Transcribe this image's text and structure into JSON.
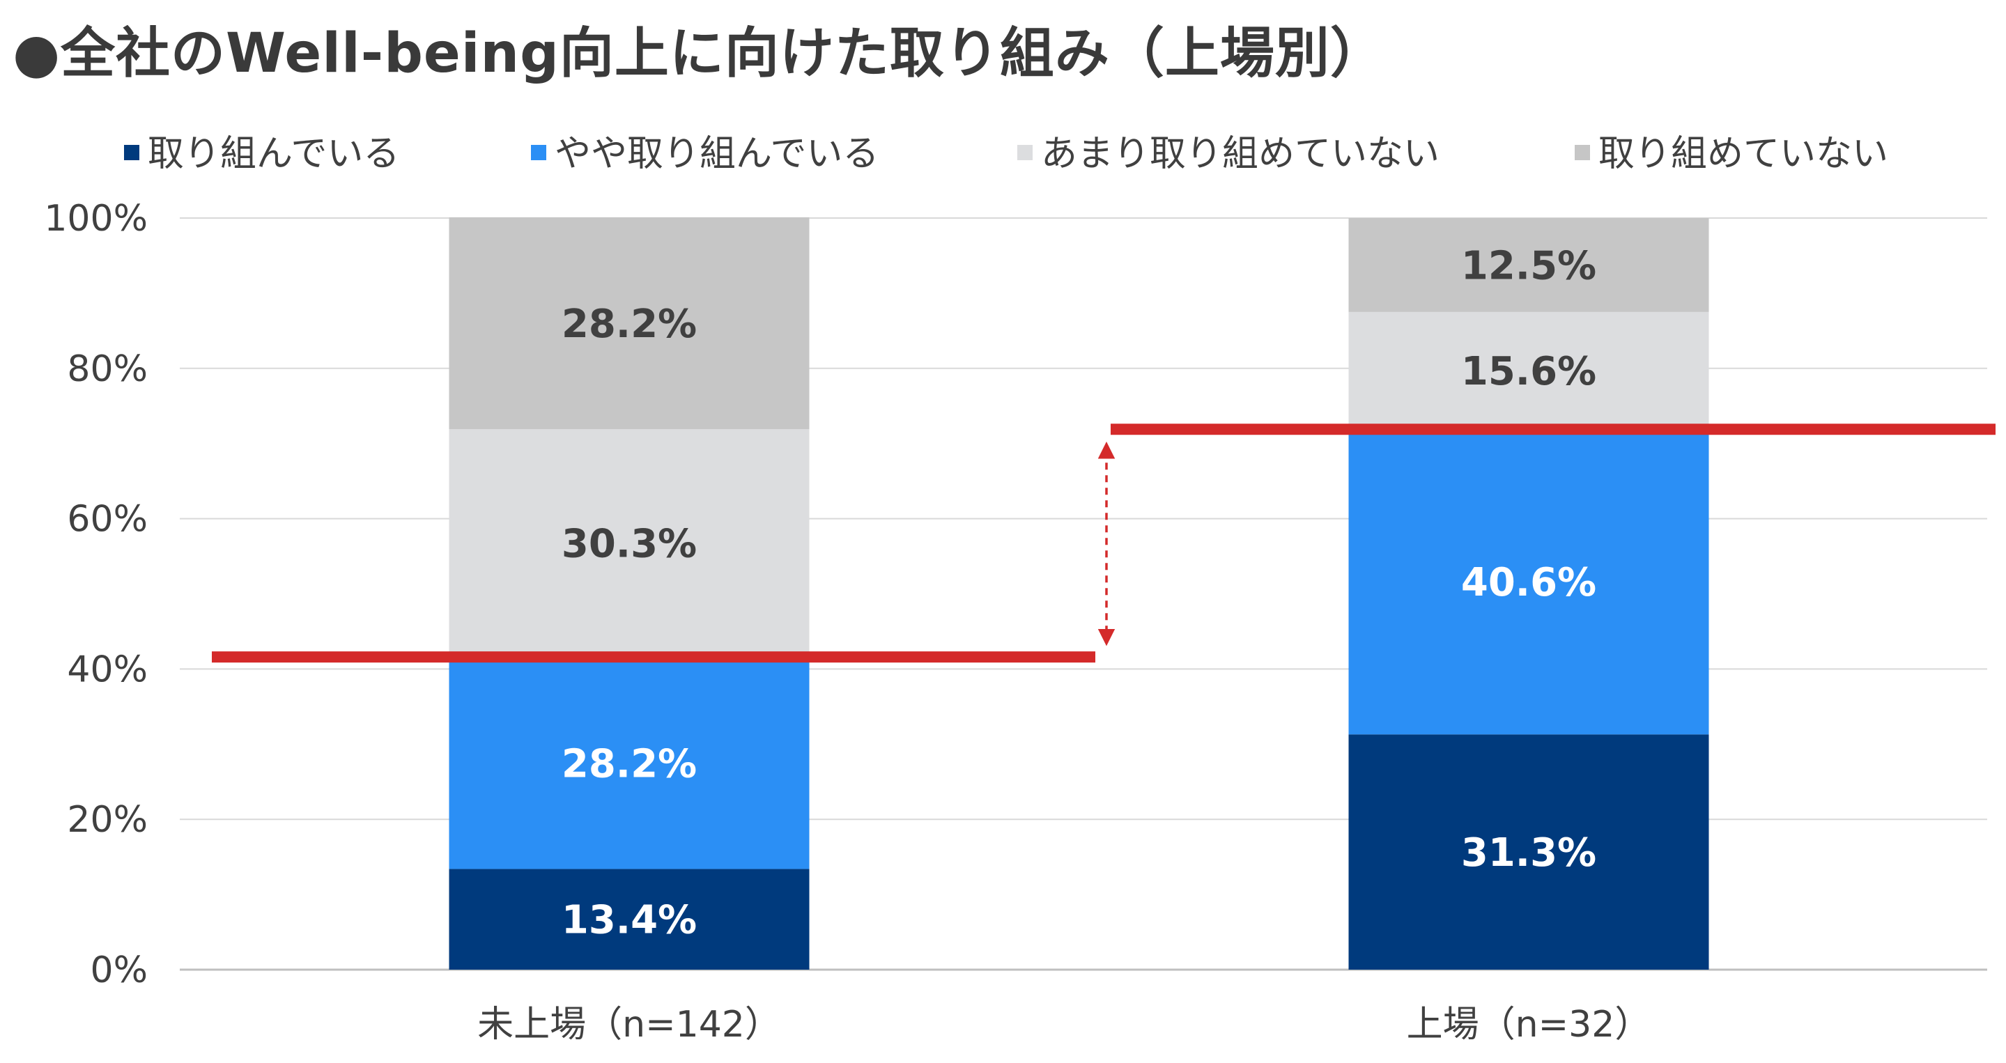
{
  "chart_data": {
    "type": "bar",
    "stacked": true,
    "percent": true,
    "title": "●全社のWell-being向上に向けた取り組み（上場別）",
    "categories": [
      "未上場（n=142）",
      "上場（n=32）"
    ],
    "series": [
      {
        "name": "取り組んでいる",
        "color": "#003a7d",
        "label_color": "#ffffff",
        "values": [
          13.4,
          31.3
        ],
        "labels": [
          "13.4%",
          "31.3%"
        ]
      },
      {
        "name": "やや取り組んでいる",
        "color": "#2b8ff5",
        "label_color": "#ffffff",
        "values": [
          28.2,
          40.6
        ],
        "labels": [
          "28.2%",
          "40.6%"
        ]
      },
      {
        "name": "あまり取り組めていない",
        "color": "#dcdddf",
        "label_color": "#404040",
        "values": [
          30.3,
          15.6
        ],
        "labels": [
          "30.3%",
          "15.6%"
        ]
      },
      {
        "name": "取り組めていない",
        "color": "#c6c6c6",
        "label_color": "#404040",
        "values": [
          28.2,
          12.5
        ],
        "labels": [
          "28.2%",
          "12.5%"
        ]
      }
    ],
    "yticks": [
      "0%",
      "20%",
      "40%",
      "60%",
      "80%",
      "100%"
    ],
    "ylim": [
      0,
      100
    ],
    "grid": true,
    "legend": "top",
    "annotation": {
      "type": "reference-lines-with-double-arrow",
      "color": "#d42a2a",
      "levels": [
        41.6,
        71.9
      ]
    }
  }
}
